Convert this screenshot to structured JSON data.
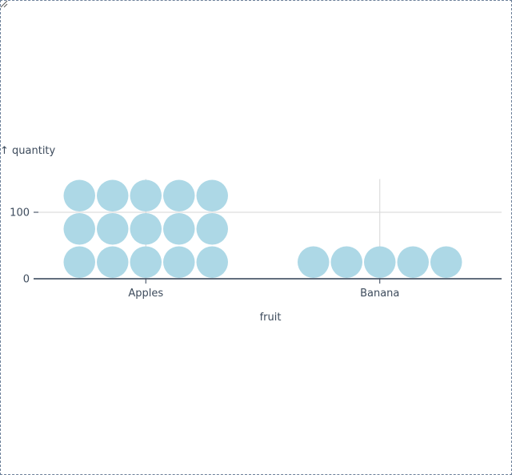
{
  "chart_data": {
    "type": "waffle",
    "categories": [
      "Apples",
      "Banana"
    ],
    "values": [
      150,
      50
    ],
    "unit": 10,
    "cells_per_row": 5,
    "xlabel": "fruit",
    "ylabel": "↑ quantity",
    "yticks": [
      0,
      100
    ],
    "ylim": [
      0,
      150
    ],
    "grid": true,
    "color": "#add8e6"
  }
}
